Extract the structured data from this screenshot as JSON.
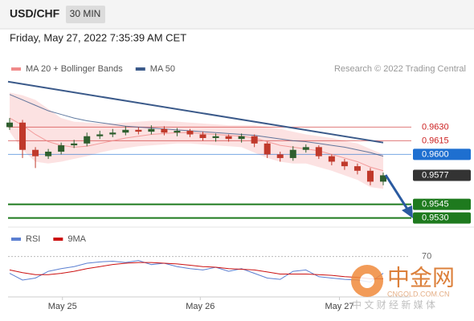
{
  "header": {
    "symbol": "USD/CHF",
    "timeframe": "30 MIN",
    "timestamp": "Friday, May 27, 2022 7:35:39 AM CET"
  },
  "copyright": "Research © 2022 Trading Central",
  "chart_data": [
    {
      "type": "candlestick",
      "open": [
        0.963,
        0.9635,
        0.9605,
        0.9598,
        0.9603,
        0.961,
        0.9612,
        0.962,
        0.9622,
        0.9624,
        0.9627,
        0.9625,
        0.9628,
        0.9624,
        0.9626,
        0.9622,
        0.9618,
        0.962,
        0.9617,
        0.962,
        0.9612,
        0.96,
        0.9596,
        0.9605,
        0.9608,
        0.9598,
        0.9592,
        0.9587,
        0.9582,
        0.957
      ],
      "high": [
        0.964,
        0.9638,
        0.9608,
        0.9606,
        0.9613,
        0.9616,
        0.9624,
        0.9626,
        0.9628,
        0.9631,
        0.963,
        0.9632,
        0.9631,
        0.9629,
        0.9628,
        0.9625,
        0.9623,
        0.9622,
        0.9623,
        0.9622,
        0.9614,
        0.9603,
        0.9609,
        0.9611,
        0.961,
        0.96,
        0.9595,
        0.959,
        0.9585,
        0.958
      ],
      "low": [
        0.9627,
        0.9596,
        0.9585,
        0.9595,
        0.96,
        0.9607,
        0.9609,
        0.9617,
        0.9619,
        0.9621,
        0.9622,
        0.9622,
        0.9621,
        0.962,
        0.9619,
        0.9615,
        0.9614,
        0.9614,
        0.9613,
        0.9608,
        0.9596,
        0.9592,
        0.9593,
        0.9602,
        0.9595,
        0.9588,
        0.9583,
        0.9578,
        0.9566,
        0.9566
      ],
      "close": [
        0.9635,
        0.9605,
        0.9598,
        0.9603,
        0.961,
        0.9612,
        0.962,
        0.9622,
        0.9624,
        0.9627,
        0.9625,
        0.9628,
        0.9624,
        0.9626,
        0.9622,
        0.9618,
        0.962,
        0.9617,
        0.962,
        0.9612,
        0.96,
        0.9596,
        0.9605,
        0.9608,
        0.9598,
        0.9592,
        0.9587,
        0.9582,
        0.957,
        0.9577
      ],
      "up_color": "#2f5f2f",
      "down_color": "#c0392b",
      "series": [
        {
          "name": "MA 20 + Bollinger Bands",
          "color": "#f08a8a",
          "values": [
            0.964,
            0.9632,
            0.9622,
            0.9614,
            0.961,
            0.9608,
            0.9609,
            0.9612,
            0.9615,
            0.9618,
            0.962,
            0.9622,
            0.9623,
            0.9624,
            0.9624,
            0.9623,
            0.9622,
            0.9621,
            0.962,
            0.9618,
            0.9614,
            0.961,
            0.9608,
            0.9606,
            0.9604,
            0.96,
            0.9596,
            0.9592,
            0.9586,
            0.9582
          ],
          "upper": [
            0.9668,
            0.9665,
            0.966,
            0.965,
            0.964,
            0.9636,
            0.9635,
            0.9634,
            0.9634,
            0.9635,
            0.9636,
            0.9637,
            0.9637,
            0.9636,
            0.9635,
            0.9634,
            0.9633,
            0.9632,
            0.9632,
            0.9632,
            0.963,
            0.9628,
            0.9625,
            0.9622,
            0.962,
            0.9618,
            0.9615,
            0.9612,
            0.9606,
            0.96
          ],
          "lower": [
            0.9625,
            0.9605,
            0.9592,
            0.959,
            0.9592,
            0.9595,
            0.9598,
            0.9602,
            0.9605,
            0.9607,
            0.9609,
            0.961,
            0.9611,
            0.9612,
            0.9612,
            0.9611,
            0.961,
            0.9609,
            0.9608,
            0.9602,
            0.9596,
            0.9592,
            0.959,
            0.959,
            0.9586,
            0.9582,
            0.9577,
            0.9572,
            0.9564,
            0.9562
          ]
        },
        {
          "name": "MA 50",
          "color": "#3b5a8a",
          "values": [
            0.9666,
            0.966,
            0.9654,
            0.9648,
            0.9644,
            0.964,
            0.9637,
            0.9635,
            0.9633,
            0.9631,
            0.963,
            0.9629,
            0.9628,
            0.9627,
            0.9626,
            0.9625,
            0.9624,
            0.9623,
            0.9622,
            0.9621,
            0.9619,
            0.9617,
            0.9615,
            0.9614,
            0.9612,
            0.961,
            0.9608,
            0.9605,
            0.9602,
            0.9598
          ]
        }
      ],
      "trendline": [
        0.968,
        0.9613
      ],
      "levels": [
        {
          "value": 0.963,
          "label": "0.9630",
          "color": "#cc2222",
          "style": "text"
        },
        {
          "value": 0.9615,
          "label": "0.9615",
          "color": "#cc2222",
          "style": "text"
        },
        {
          "value": 0.96,
          "label": "0.9600",
          "color": "#1e6fd0",
          "style": "box"
        },
        {
          "value": 0.9577,
          "label": "0.9577",
          "color": "#333333",
          "style": "box"
        },
        {
          "value": 0.9545,
          "label": "0.9545",
          "color": "#1e7a1e",
          "style": "box"
        },
        {
          "value": 0.953,
          "label": "0.9530",
          "color": "#1e7a1e",
          "style": "box"
        }
      ],
      "ylim": [
        0.952,
        0.9686
      ]
    },
    {
      "type": "line",
      "series": [
        {
          "name": "RSI",
          "color": "#5b7fd1",
          "values": [
            45,
            35,
            38,
            48,
            52,
            55,
            60,
            62,
            63,
            61,
            64,
            58,
            60,
            55,
            52,
            50,
            54,
            48,
            52,
            45,
            38,
            36,
            48,
            50,
            40,
            38,
            36,
            35,
            32,
            45
          ]
        },
        {
          "name": "9MA",
          "color": "#cc1111",
          "values": [
            50,
            46,
            43,
            43,
            45,
            48,
            52,
            55,
            58,
            60,
            61,
            61,
            60,
            59,
            57,
            55,
            54,
            52,
            51,
            50,
            47,
            44,
            44,
            44,
            43,
            42,
            40,
            39,
            37,
            37
          ]
        }
      ],
      "ylim": [
        10,
        85
      ],
      "yticks": [
        70
      ],
      "xticks": [
        {
          "value": 4.1,
          "label": "May 25"
        },
        {
          "value": 14.8,
          "label": "May 26"
        },
        {
          "value": 25.6,
          "label": "May 27"
        }
      ]
    }
  ],
  "watermark": {
    "logo": "中金网",
    "domain": "CNGOLD.COM.CN",
    "tagline": "中 文 财 经 新 媒 体"
  }
}
